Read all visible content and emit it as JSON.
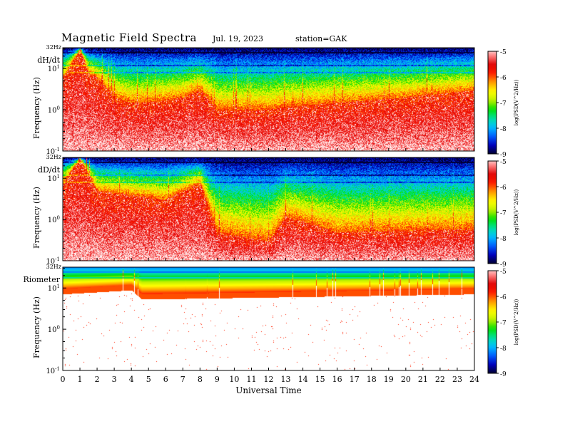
{
  "header": {
    "title": "Magnetic Field Spectra",
    "date": "Jul. 19, 2023",
    "station": "station=GAK"
  },
  "colors": {
    "colormap": [
      "#000030",
      "#0000c0",
      "#0060ff",
      "#00c0ff",
      "#00e0a0",
      "#00e000",
      "#c0f000",
      "#ffff00",
      "#ffa000",
      "#ff2000",
      "#e00000",
      "#ff8080",
      "#ffffff"
    ]
  },
  "chart_data": [
    {
      "type": "heatmap",
      "panel_label": "dH/dt",
      "top_label": "32Hz",
      "ylabel": "Frequency (Hz)",
      "yscale": "log",
      "ylim": [
        0.1,
        32
      ],
      "y_ticks": [
        {
          "base": "10",
          "exp": "-1",
          "value": 0.1
        },
        {
          "base": "10",
          "exp": "0",
          "value": 1
        },
        {
          "base": "10",
          "exp": "1",
          "value": 10
        }
      ],
      "xlim": [
        0,
        24
      ],
      "colorbar": {
        "label": "log(PSD(V^2/Hz))",
        "range": [
          -9,
          -5
        ],
        "ticks": [
          "-5",
          "-6",
          "-7",
          "-8",
          "-9"
        ]
      },
      "features": {
        "noise_floor_hz_by_hour": [
          [
            0,
            6
          ],
          [
            1,
            30
          ],
          [
            1.5,
            8
          ],
          [
            2,
            6
          ],
          [
            3,
            2
          ],
          [
            4,
            1.5
          ],
          [
            5,
            1.5
          ],
          [
            7,
            2
          ],
          [
            8,
            3
          ],
          [
            9,
            1
          ],
          [
            12,
            1
          ],
          [
            13,
            1.2
          ],
          [
            16,
            1.5
          ],
          [
            20,
            2
          ],
          [
            24,
            3
          ]
        ],
        "bands_hz": [
          25,
          12,
          8
        ]
      }
    },
    {
      "type": "heatmap",
      "panel_label": "dD/dt",
      "top_label": "32Hz",
      "ylabel": "Frequency (Hz)",
      "yscale": "log",
      "ylim": [
        0.1,
        32
      ],
      "y_ticks": [
        {
          "base": "10",
          "exp": "-1",
          "value": 0.1
        },
        {
          "base": "10",
          "exp": "0",
          "value": 1
        },
        {
          "base": "10",
          "exp": "1",
          "value": 10
        }
      ],
      "xlim": [
        0,
        24
      ],
      "colorbar": {
        "label": "log(PSD(V^2/Hz))",
        "range": [
          -9,
          -5
        ],
        "ticks": [
          "-5",
          "-6",
          "-7",
          "-8",
          "-9"
        ]
      },
      "features": {
        "noise_floor_hz_by_hour": [
          [
            0,
            8
          ],
          [
            1,
            30
          ],
          [
            2,
            5
          ],
          [
            4,
            4
          ],
          [
            6,
            3
          ],
          [
            8,
            8
          ],
          [
            9,
            0.5
          ],
          [
            12,
            0.3
          ],
          [
            13,
            1.2
          ],
          [
            16,
            0.5
          ],
          [
            24,
            0.6
          ]
        ],
        "bands_hz": [
          25,
          12,
          8
        ]
      }
    },
    {
      "type": "heatmap",
      "panel_label": "Riometer",
      "top_label": "32Hz",
      "ylabel": "Frequency (Hz)",
      "yscale": "log",
      "ylim": [
        0.1,
        32
      ],
      "y_ticks": [
        {
          "base": "10",
          "exp": "-1",
          "value": 0.1
        },
        {
          "base": "10",
          "exp": "0",
          "value": 1
        },
        {
          "base": "10",
          "exp": "1",
          "value": 10
        }
      ],
      "xlim": [
        0,
        24
      ],
      "colorbar": {
        "label": "log(PSD(V^2/Hz))",
        "range": [
          -9,
          -5
        ],
        "ticks": [
          "-5",
          "-6",
          "-7",
          "-8",
          "-9"
        ]
      },
      "features": {
        "noise_floor_hz_by_hour": [
          [
            0,
            8
          ],
          [
            4,
            10
          ],
          [
            4.6,
            6
          ],
          [
            24,
            8
          ]
        ],
        "bands_hz": [
          25,
          18
        ]
      }
    }
  ],
  "x_axis": {
    "label": "Universal Time",
    "ticks": [
      "0",
      "1",
      "2",
      "3",
      "4",
      "5",
      "6",
      "7",
      "8",
      "9",
      "10",
      "11",
      "12",
      "13",
      "14",
      "15",
      "16",
      "17",
      "18",
      "19",
      "20",
      "21",
      "22",
      "23",
      "24"
    ]
  }
}
